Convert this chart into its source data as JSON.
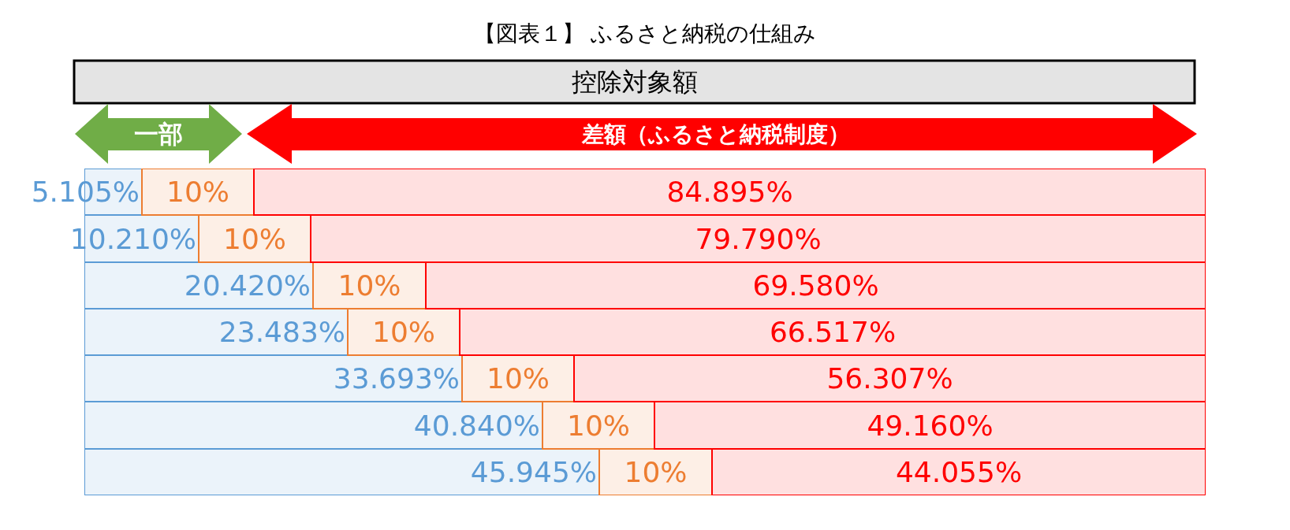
{
  "chart_data": {
    "type": "bar",
    "orientation": "horizontal",
    "stacked": true,
    "title": "【図表１】 ふるさと納税の仕組み",
    "annotations": [
      "控除対象額",
      "一部",
      "差額（ふるさと納税制度）"
    ],
    "categories": [
      null,
      null,
      null,
      null,
      null,
      null,
      null
    ],
    "series": [
      {
        "color": "#5b9bd5",
        "values": [
          5.105,
          10.21,
          20.42,
          23.483,
          33.693,
          40.84,
          45.945
        ],
        "value_labels": [
          "5.105%",
          "10.210%",
          "20.420%",
          "23.483%",
          "33.693%",
          "40.840%",
          "45.945%"
        ]
      },
      {
        "color": "#ed7d31",
        "values": [
          10,
          10,
          10,
          10,
          10,
          10,
          10
        ],
        "value_labels": [
          "10%",
          "10%",
          "10%",
          "10%",
          "10%",
          "10%",
          "10%"
        ]
      },
      {
        "color": "#ff0000",
        "values": [
          84.895,
          79.79,
          69.58,
          66.517,
          56.307,
          49.16,
          44.055
        ],
        "value_labels": [
          "84.895%",
          "79.790%",
          "69.580%",
          "66.517%",
          "56.307%",
          "49.160%",
          "44.055%"
        ]
      }
    ],
    "xlim": [
      0,
      100
    ],
    "tick_labels": false
  }
}
